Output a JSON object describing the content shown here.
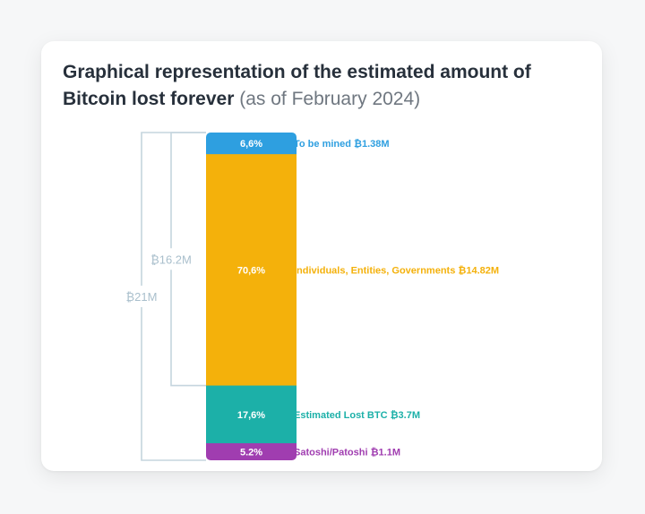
{
  "title": {
    "main": "Graphical representation of the estimated amount of Bitcoin lost forever",
    "sub": "(as of February 2024)"
  },
  "chart_data": {
    "type": "bar",
    "subtype": "stacked-single",
    "segments": [
      {
        "label": "6,6%",
        "percent": 6.6,
        "legend": "To be mined ₿1.38M",
        "color": "#2e9fe0"
      },
      {
        "label": "70,6%",
        "percent": 70.6,
        "legend": "Individuals, Entities, Governments ₿14.82M",
        "color": "#f4b10b"
      },
      {
        "label": "17,6%",
        "percent": 17.6,
        "legend": "Estimated Lost BTC ₿3.7M",
        "color": "#1cb0a8"
      },
      {
        "label": "5.2%",
        "percent": 5.2,
        "legend": "Satoshi/Patoshi ₿1.1M",
        "color": "#a03db0"
      }
    ],
    "brackets": [
      {
        "label": "₿16.2M",
        "from_segment": 0,
        "to_segment": 1
      },
      {
        "label": "₿21M",
        "from_segment": 0,
        "to_segment": 3
      }
    ],
    "bracket_color": "#c5d5de",
    "legend_position": "right"
  }
}
